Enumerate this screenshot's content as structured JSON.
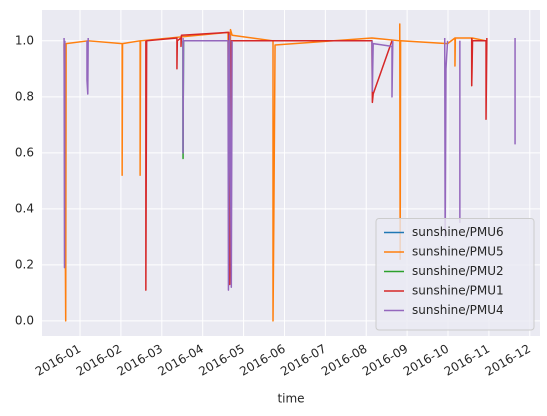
{
  "chart_data": {
    "type": "line",
    "xlabel": "time",
    "grid": true,
    "legend": "lower right",
    "xlim": [
      0.07,
      12.25
    ],
    "xticks": [
      {
        "value": 1,
        "label": "2016-01"
      },
      {
        "value": 2,
        "label": "2016-02"
      },
      {
        "value": 3,
        "label": "2016-03"
      },
      {
        "value": 4,
        "label": "2016-04"
      },
      {
        "value": 5,
        "label": "2016-05"
      },
      {
        "value": 6,
        "label": "2016-06"
      },
      {
        "value": 7,
        "label": "2016-07"
      },
      {
        "value": 8,
        "label": "2016-08"
      },
      {
        "value": 9,
        "label": "2016-09"
      },
      {
        "value": 10,
        "label": "2016-10"
      },
      {
        "value": 11,
        "label": "2016-11"
      },
      {
        "value": 12,
        "label": "2016-12"
      }
    ],
    "ylim": [
      -0.054,
      1.11
    ],
    "yticks": [
      {
        "value": 0,
        "label": "0.0"
      },
      0.2,
      0.4,
      0.6,
      0.8,
      {
        "value": 1,
        "label": "1.0"
      }
    ],
    "series": [
      {
        "name": "sunshine/PMU6",
        "color": "#1f77b4",
        "x": [
          3.52,
          3.52,
          3.53
        ],
        "values": [
          1.0,
          0.6,
          1.0
        ]
      },
      {
        "name": "sunshine/PMU5",
        "color": "#ff7f0e",
        "x": [
          0.61,
          0.65,
          0.66,
          1.2,
          2.03,
          2.03,
          2.04,
          2.47,
          2.47,
          2.48,
          4.62,
          4.64,
          4.68,
          4.72,
          5.72,
          5.72,
          5.74,
          5.77,
          8.14,
          8.82,
          8.82,
          8.83,
          8.84,
          9.99,
          10.17,
          10.17,
          10.18,
          10.58,
          10.58,
          10.59,
          10.93
        ],
        "values": [
          0.99,
          0.0,
          0.99,
          1.0,
          0.99,
          0.52,
          0.99,
          1.0,
          0.52,
          1.0,
          1.03,
          0.13,
          1.04,
          1.02,
          1.0,
          0.0,
          0.36,
          0.985,
          1.01,
          1.0,
          1.06,
          0.22,
          1.0,
          0.99,
          1.01,
          0.91,
          1.01,
          1.01,
          0.84,
          1.01,
          1.0
        ]
      },
      {
        "name": "sunshine/PMU2",
        "color": "#2ca02c",
        "x": [
          3.52,
          3.52,
          3.53
        ],
        "values": [
          1.0,
          0.58,
          1.0
        ]
      },
      {
        "name": "sunshine/PMU1",
        "color": "#d62728",
        "x": [
          2.61,
          2.61,
          2.63,
          3.37,
          3.37,
          3.38,
          3.47,
          3.47,
          3.48,
          4.64,
          4.66,
          4.7,
          8.14,
          8.15,
          8.17,
          8.63,
          null,
          10.58,
          10.58,
          10.6,
          10.93,
          10.93,
          10.95
        ],
        "values": [
          1.0,
          0.11,
          1.0,
          1.01,
          0.9,
          1.0,
          1.01,
          0.98,
          1.02,
          1.03,
          0.13,
          1.0,
          1.0,
          0.78,
          0.81,
          1.0,
          null,
          1.01,
          0.84,
          1.0,
          1.0,
          0.72,
          1.01
        ]
      },
      {
        "name": "sunshine/PMU4",
        "color": "#9467bd",
        "x": [
          0.61,
          0.62,
          0.63,
          null,
          1.17,
          1.17,
          1.19,
          1.2,
          null,
          3.52,
          3.52,
          3.53,
          4.62,
          4.63,
          4.66,
          4.7,
          4.72,
          null,
          8.14,
          8.15,
          8.17,
          8.63,
          8.63,
          8.65,
          null,
          9.92,
          9.93,
          9.95,
          9.99,
          null,
          10.29,
          10.29,
          null,
          11.64,
          11.64
        ],
        "values": [
          1.01,
          0.19,
          1.0,
          null,
          1.0,
          0.86,
          0.81,
          1.01,
          null,
          1.01,
          0.6,
          1.0,
          1.0,
          0.11,
          1.02,
          0.12,
          1.0,
          null,
          1.0,
          0.82,
          0.99,
          0.98,
          0.8,
          1.0,
          null,
          1.01,
          0.3,
          0.9,
          1.0,
          null,
          1.0,
          0.35,
          null,
          1.01,
          0.63
        ]
      }
    ]
  }
}
